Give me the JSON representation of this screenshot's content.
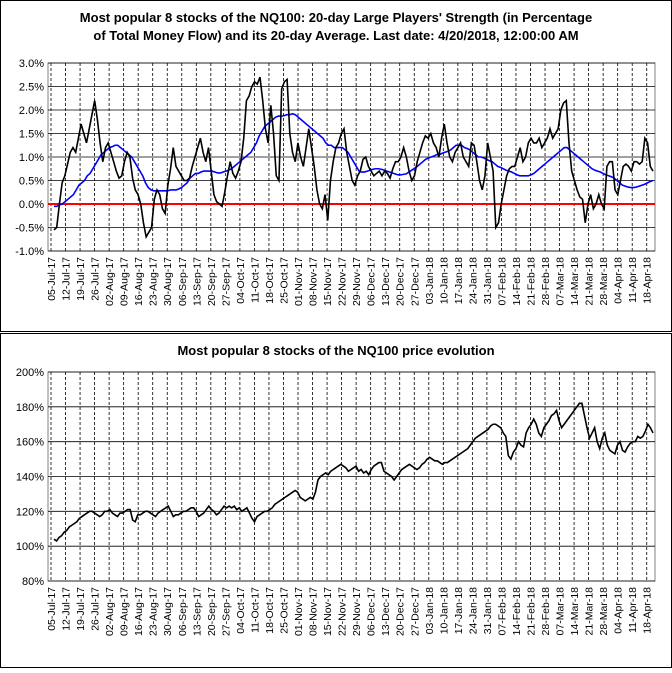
{
  "chart_data": [
    {
      "type": "line",
      "title_line1": "Most popular 8 stocks of the NQ100: 20-day Large Players' Strength (in Percentage",
      "title_line2": "of Total Money Flow) and its 20-day Average. Last date: 4/20/2018, 12:00:00 AM",
      "ylim": [
        -1.0,
        3.0
      ],
      "yticks": [
        "-1.0%",
        "-0.5%",
        "0.0%",
        "0.5%",
        "1.0%",
        "1.5%",
        "2.0%",
        "2.5%",
        "3.0%"
      ],
      "ytick_values": [
        -1.0,
        -0.5,
        0.0,
        0.5,
        1.0,
        1.5,
        2.0,
        2.5,
        3.0
      ],
      "grid": true,
      "colors": {
        "strength": "#000000",
        "average": "#0000ff",
        "zero_line": "#ff0000"
      },
      "series": [
        {
          "key": "strength",
          "color": "#000000",
          "values": [
            -0.55,
            -0.5,
            0.0,
            0.45,
            0.6,
            0.85,
            1.1,
            1.2,
            1.1,
            1.4,
            1.7,
            1.5,
            1.3,
            1.6,
            1.9,
            2.2,
            1.8,
            1.3,
            0.9,
            1.2,
            1.3,
            1.1,
            0.9,
            0.7,
            0.55,
            0.6,
            0.9,
            1.1,
            1.0,
            0.55,
            0.3,
            0.2,
            0.0,
            -0.4,
            -0.7,
            -0.6,
            -0.5,
            0.1,
            0.3,
            0.2,
            -0.1,
            -0.2,
            0.4,
            0.75,
            1.2,
            0.8,
            0.7,
            0.6,
            0.5,
            0.5,
            0.55,
            0.8,
            1.0,
            1.2,
            1.4,
            1.1,
            0.9,
            1.2,
            0.7,
            0.2,
            0.05,
            0.0,
            -0.05,
            0.25,
            0.6,
            0.9,
            0.65,
            0.55,
            0.7,
            0.9,
            1.4,
            2.2,
            2.3,
            2.5,
            2.6,
            2.55,
            2.7,
            2.2,
            1.6,
            1.3,
            2.1,
            1.5,
            0.6,
            0.5,
            2.45,
            2.6,
            2.65,
            1.5,
            1.1,
            0.9,
            1.3,
            1.0,
            0.8,
            1.2,
            1.6,
            1.2,
            0.8,
            0.3,
            0.0,
            -0.1,
            0.2,
            -0.35,
            0.5,
            0.9,
            1.2,
            1.3,
            1.5,
            1.6,
            1.1,
            0.8,
            0.5,
            0.4,
            0.6,
            0.7,
            0.95,
            1.0,
            0.8,
            0.7,
            0.6,
            0.65,
            0.7,
            0.6,
            0.7,
            0.65,
            0.55,
            0.75,
            0.9,
            0.9,
            1.0,
            1.2,
            1.0,
            0.7,
            0.5,
            0.6,
            0.9,
            1.1,
            1.3,
            1.45,
            1.4,
            1.5,
            1.3,
            1.2,
            1.0,
            1.4,
            1.7,
            1.3,
            1.0,
            0.9,
            1.1,
            1.2,
            1.3,
            1.0,
            0.9,
            0.8,
            1.3,
            1.25,
            0.9,
            0.5,
            0.3,
            0.6,
            1.3,
            1.0,
            0.7,
            -0.5,
            -0.4,
            0.0,
            0.3,
            0.6,
            0.75,
            0.8,
            0.8,
            1.0,
            1.2,
            0.9,
            1.0,
            1.3,
            1.4,
            1.3,
            1.3,
            1.4,
            1.2,
            1.3,
            1.4,
            1.6,
            1.4,
            1.5,
            1.6,
            2.0,
            2.15,
            2.2,
            1.3,
            0.7,
            0.5,
            0.3,
            0.15,
            0.1,
            -0.4,
            0.0,
            0.2,
            -0.1,
            0.0,
            0.2,
            0.0,
            -0.1,
            0.8,
            0.9,
            0.9,
            0.3,
            0.2,
            0.5,
            0.8,
            0.85,
            0.8,
            0.7,
            0.9,
            0.9,
            0.85,
            0.9,
            1.4,
            1.3,
            0.8,
            0.7
          ]
        },
        {
          "key": "average",
          "color": "#0000ff",
          "values": [
            -0.05,
            -0.05,
            -0.02,
            0.0,
            0.05,
            0.1,
            0.15,
            0.2,
            0.3,
            0.4,
            0.45,
            0.5,
            0.6,
            0.65,
            0.75,
            0.85,
            0.95,
            1.05,
            1.1,
            1.15,
            1.2,
            1.22,
            1.25,
            1.25,
            1.2,
            1.15,
            1.1,
            1.05,
            1.0,
            0.9,
            0.8,
            0.7,
            0.6,
            0.45,
            0.35,
            0.3,
            0.28,
            0.28,
            0.28,
            0.28,
            0.28,
            0.28,
            0.3,
            0.3,
            0.3,
            0.32,
            0.35,
            0.4,
            0.45,
            0.55,
            0.6,
            0.65,
            0.65,
            0.68,
            0.7,
            0.7,
            0.7,
            0.7,
            0.68,
            0.66,
            0.66,
            0.68,
            0.7,
            0.72,
            0.75,
            0.8,
            0.85,
            0.9,
            0.95,
            1.0,
            1.05,
            1.1,
            1.2,
            1.3,
            1.45,
            1.55,
            1.65,
            1.7,
            1.75,
            1.8,
            1.85,
            1.87,
            1.87,
            1.88,
            1.9,
            1.9,
            1.92,
            1.9,
            1.85,
            1.8,
            1.75,
            1.7,
            1.65,
            1.6,
            1.55,
            1.5,
            1.45,
            1.4,
            1.3,
            1.25,
            1.25,
            1.2,
            1.2,
            1.2,
            1.2,
            1.15,
            1.1,
            1.0,
            0.9,
            0.8,
            0.7,
            0.68,
            0.68,
            0.7,
            0.72,
            0.74,
            0.75,
            0.75,
            0.74,
            0.72,
            0.7,
            0.68,
            0.66,
            0.64,
            0.62,
            0.62,
            0.63,
            0.64,
            0.68,
            0.72,
            0.76,
            0.8,
            0.85,
            0.9,
            0.95,
            0.98,
            1.0,
            1.02,
            1.05,
            1.05,
            1.08,
            1.1,
            1.12,
            1.15,
            1.2,
            1.25,
            1.25,
            1.25,
            1.2,
            1.18,
            1.15,
            1.1,
            1.05,
            1.0,
            1.0,
            0.98,
            0.95,
            0.92,
            0.9,
            0.85,
            0.8,
            0.78,
            0.75,
            0.72,
            0.7,
            0.68,
            0.65,
            0.62,
            0.6,
            0.6,
            0.6,
            0.6,
            0.62,
            0.65,
            0.7,
            0.75,
            0.8,
            0.85,
            0.9,
            0.95,
            1.0,
            1.05,
            1.1,
            1.15,
            1.2,
            1.2,
            1.15,
            1.1,
            1.05,
            1.0,
            0.95,
            0.9,
            0.85,
            0.8,
            0.75,
            0.72,
            0.7,
            0.68,
            0.65,
            0.62,
            0.6,
            0.58,
            0.55,
            0.5,
            0.45,
            0.4,
            0.38,
            0.36,
            0.35,
            0.35,
            0.36,
            0.38,
            0.4,
            0.42,
            0.45,
            0.48,
            0.5
          ]
        }
      ]
    },
    {
      "type": "line",
      "title": "Most popular 8 stocks of the NQ100 price evolution",
      "ylim": [
        80,
        200
      ],
      "yticks": [
        "80%",
        "100%",
        "120%",
        "140%",
        "160%",
        "180%",
        "200%"
      ],
      "ytick_values": [
        80,
        100,
        120,
        140,
        160,
        180,
        200
      ],
      "grid": true,
      "series": [
        {
          "key": "price",
          "color": "#000000",
          "values": [
            104,
            103,
            105,
            106,
            108,
            109,
            111,
            112,
            113,
            114,
            116,
            117,
            118,
            119,
            120,
            120,
            119,
            118,
            117,
            118,
            120,
            120,
            121,
            119,
            118,
            117,
            119,
            119,
            120,
            121,
            121,
            115,
            114,
            118,
            118,
            119,
            120,
            120,
            119,
            118,
            117,
            119,
            120,
            121,
            122,
            123,
            120,
            117,
            118,
            118,
            119,
            120,
            120,
            121,
            122,
            122,
            120,
            117,
            118,
            119,
            121,
            123,
            121,
            120,
            118,
            119,
            121,
            123,
            122,
            123,
            122,
            123,
            121,
            122,
            120,
            121,
            122,
            119,
            116,
            114,
            117,
            118,
            119,
            120,
            120,
            121,
            122,
            124,
            125,
            126,
            127,
            128,
            129,
            130,
            131,
            132,
            131,
            128,
            127,
            126,
            127,
            128,
            127,
            131,
            138,
            140,
            141,
            142,
            141,
            143,
            144,
            145,
            146,
            147,
            146,
            145,
            143,
            144,
            145,
            146,
            143,
            144,
            142,
            143,
            141,
            144,
            146,
            147,
            148,
            148,
            143,
            142,
            141,
            140,
            138,
            140,
            142,
            144,
            145,
            146,
            147,
            146,
            145,
            144,
            145,
            147,
            148,
            150,
            151,
            150,
            149,
            149,
            148,
            147,
            148,
            148,
            149,
            150,
            151,
            152,
            153,
            154,
            155,
            156,
            158,
            160,
            162,
            163,
            164,
            165,
            166,
            167,
            169,
            170,
            170,
            169,
            168,
            165,
            163,
            152,
            150,
            154,
            156,
            160,
            158,
            157,
            165,
            168,
            170,
            173,
            170,
            165,
            163,
            168,
            170,
            172,
            175,
            176,
            178,
            172,
            168,
            170,
            172,
            174,
            176,
            178,
            180,
            182,
            182,
            175,
            168,
            162,
            165,
            168,
            160,
            156,
            162,
            165,
            158,
            155,
            154,
            153,
            158,
            160,
            155,
            154,
            157,
            159,
            160,
            160,
            163,
            162,
            163,
            166,
            170,
            168,
            165
          ]
        }
      ]
    },
    {
      "x_dates": [
        "05-Jul-17",
        "12-Jul-17",
        "19-Jul-17",
        "26-Jul-17",
        "02-Aug-17",
        "09-Aug-17",
        "16-Aug-17",
        "23-Aug-17",
        "30-Aug-17",
        "06-Sep-17",
        "13-Sep-17",
        "20-Sep-17",
        "27-Sep-17",
        "04-Oct-17",
        "11-Oct-17",
        "18-Oct-17",
        "25-Oct-17",
        "01-Nov-17",
        "08-Nov-17",
        "15-Nov-17",
        "22-Nov-17",
        "29-Nov-17",
        "06-Dec-17",
        "13-Dec-17",
        "20-Dec-17",
        "27-Dec-17",
        "03-Jan-18",
        "10-Jan-18",
        "17-Jan-18",
        "24-Jan-18",
        "31-Jan-18",
        "07-Feb-18",
        "14-Feb-18",
        "21-Feb-18",
        "28-Feb-18",
        "07-Mar-18",
        "14-Mar-18",
        "21-Mar-18",
        "28-Mar-18",
        "04-Apr-18",
        "11-Apr-18",
        "18-Apr-18"
      ]
    }
  ]
}
